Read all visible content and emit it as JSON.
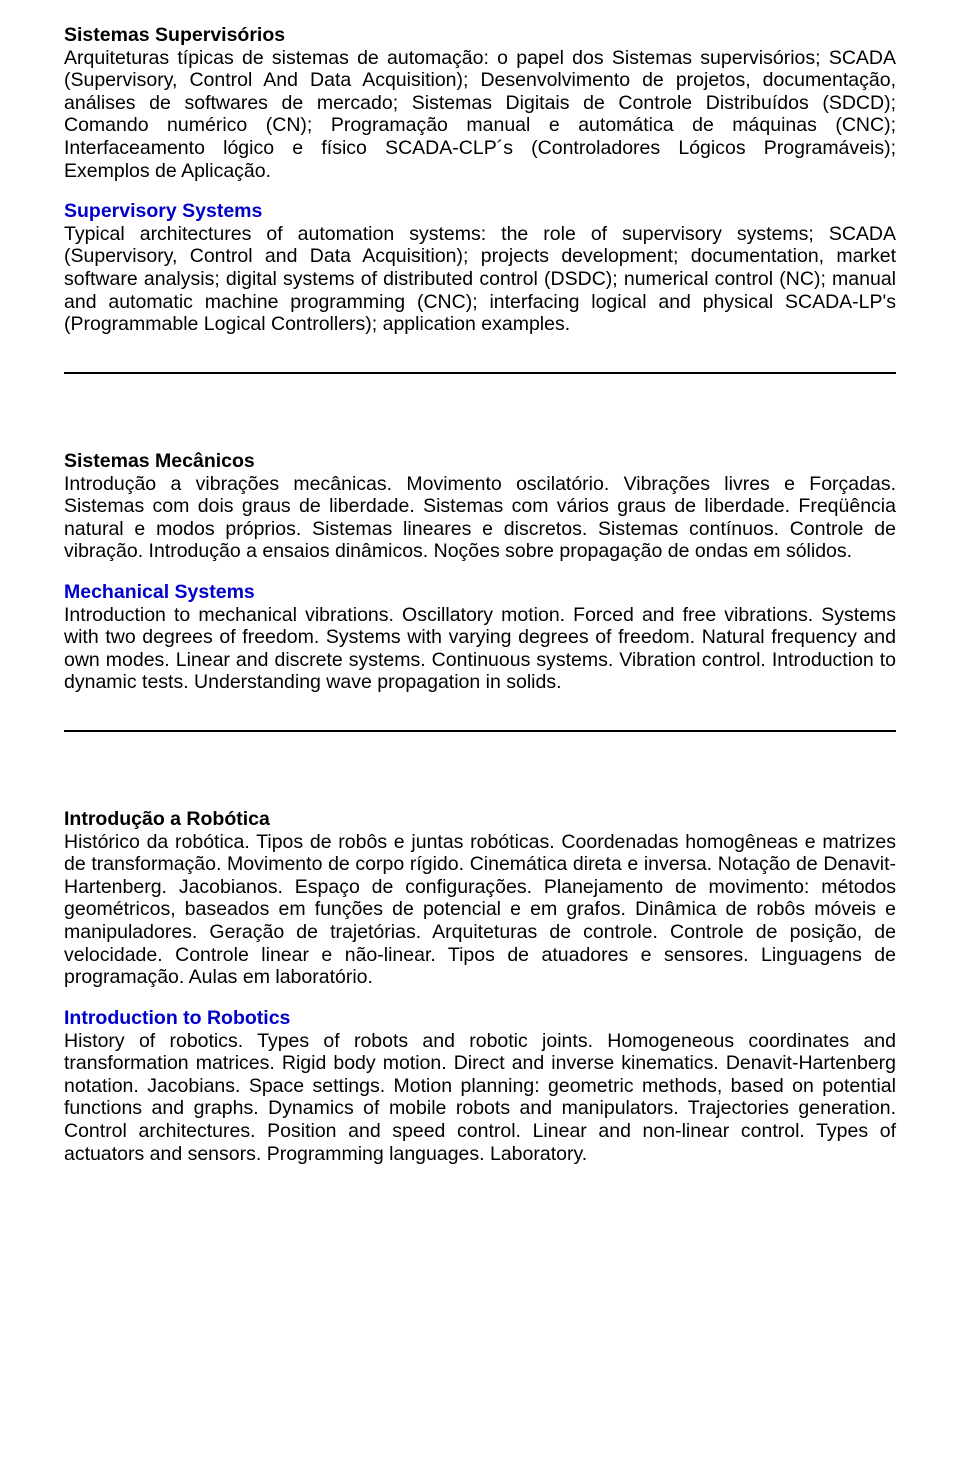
{
  "sec1": {
    "title_pt": "Sistemas Supervisórios",
    "body_pt": "Arquiteturas típicas de sistemas de automação: o papel dos Sistemas supervisórios; SCADA (Supervisory, Control And Data Acquisition); Desenvolvimento de projetos, documentação, análises de softwares de mercado; Sistemas Digitais de Controle Distribuídos (SDCD); Comando numérico (CN); Programação manual e automática de máquinas (CNC); Interfaceamento lógico e físico SCADA-CLP´s (Controladores Lógicos Programáveis); Exemplos de Aplicação.",
    "title_en": "Supervisory Systems",
    "body_en": "Typical architectures of automation systems: the role of supervisory systems; SCADA (Supervisory, Control and Data Acquisition); projects development; documentation, market software analysis; digital systems of distributed control (DSDC); numerical control (NC); manual and automatic machine programming (CNC); interfacing logical and physical SCADA-LP's (Programmable Logical Controllers); application examples."
  },
  "sec2": {
    "title_pt": "Sistemas Mecânicos",
    "body_pt": "Introdução a vibrações mecânicas. Movimento oscilatório. Vibrações livres e Forçadas. Sistemas com dois graus de liberdade. Sistemas com vários graus de liberdade. Freqüência natural e modos próprios. Sistemas lineares e discretos. Sistemas contínuos. Controle de vibração. Introdução a ensaios dinâmicos. Noções sobre propagação de ondas em sólidos.",
    "title_en": "Mechanical Systems",
    "body_en": "Introduction to mechanical vibrations. Oscillatory motion. Forced and free vibrations. Systems with two degrees of freedom. Systems with varying degrees of freedom. Natural frequency and own modes. Linear and discrete systems. Continuous systems. Vibration control. Introduction to dynamic tests. Understanding wave propagation in solids."
  },
  "sec3": {
    "title_pt": "Introdução a Robótica",
    "body_pt": "Histórico da robótica. Tipos de robôs e juntas robóticas. Coordenadas homogêneas e matrizes de transformação. Movimento de corpo rígido. Cinemática direta e inversa. Notação de Denavit-Hartenberg. Jacobianos. Espaço de configurações. Planejamento de movimento: métodos geométricos, baseados em funções de potencial e em grafos. Dinâmica de robôs móveis e manipuladores. Geração de trajetórias. Arquiteturas de controle. Controle de posição, de velocidade. Controle linear e não-linear. Tipos de atuadores e sensores. Linguagens de programação. Aulas em laboratório.",
    "title_en": "Introduction to Robotics",
    "body_en": "History of robotics. Types of robots and robotic joints. Homogeneous coordinates and transformation matrices. Rigid body motion. Direct and inverse kinematics. Denavit-Hartenberg notation. Jacobians. Space settings. Motion planning: geometric methods, based on potential functions and graphs. Dynamics of mobile robots and manipulators. Trajectories generation. Control architectures. Position and speed control. Linear and non-linear control. Types of actuators and sensors. Programming languages. Laboratory."
  }
}
